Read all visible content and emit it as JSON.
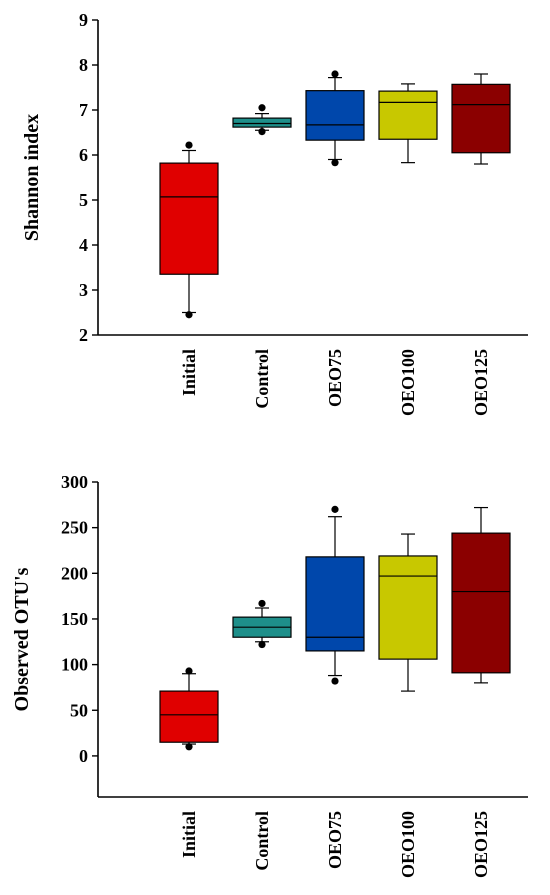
{
  "chart_data": [
    {
      "type": "boxplot",
      "ylabel": "Shannon index",
      "ylim": [
        2,
        9
      ],
      "yticks": [
        2,
        3,
        4,
        5,
        6,
        7,
        8,
        9
      ],
      "categories": [
        "Initial",
        "Control",
        "OEO75",
        "OEO100",
        "OEO125"
      ],
      "colors": [
        "#e00000",
        "#1e8f8a",
        "#0047ab",
        "#c8c800",
        "#8b0000"
      ],
      "boxes": [
        {
          "min": 2.5,
          "q1": 3.35,
          "median": 5.07,
          "q3": 5.82,
          "max": 6.1,
          "outliers": [
            2.45,
            6.22
          ]
        },
        {
          "min": 6.55,
          "q1": 6.62,
          "median": 6.7,
          "q3": 6.82,
          "max": 6.92,
          "outliers": [
            6.52,
            7.05
          ]
        },
        {
          "min": 5.9,
          "q1": 6.33,
          "median": 6.67,
          "q3": 7.43,
          "max": 7.72,
          "outliers": [
            5.83,
            7.8
          ]
        },
        {
          "min": 5.83,
          "q1": 6.35,
          "median": 7.17,
          "q3": 7.42,
          "max": 7.58,
          "outliers": []
        },
        {
          "min": 5.8,
          "q1": 6.05,
          "median": 7.12,
          "q3": 7.57,
          "max": 7.8,
          "outliers": []
        }
      ]
    },
    {
      "type": "boxplot",
      "ylabel": "Observed OTU's",
      "ylim": [
        -45,
        300
      ],
      "yticks": [
        0,
        50,
        100,
        150,
        200,
        250,
        300
      ],
      "categories": [
        "Initial",
        "Control",
        "OEO75",
        "OEO100",
        "OEO125"
      ],
      "colors": [
        "#e00000",
        "#1e8f8a",
        "#0047ab",
        "#c8c800",
        "#8b0000"
      ],
      "boxes": [
        {
          "min": 13,
          "q1": 15,
          "median": 45,
          "q3": 71,
          "max": 90,
          "outliers": [
            10,
            93
          ]
        },
        {
          "min": 125,
          "q1": 130,
          "median": 141,
          "q3": 152,
          "max": 162,
          "outliers": [
            122,
            167
          ]
        },
        {
          "min": 88,
          "q1": 115,
          "median": 130,
          "q3": 218,
          "max": 262,
          "outliers": [
            82,
            270
          ]
        },
        {
          "min": 71,
          "q1": 106,
          "median": 197,
          "q3": 219,
          "max": 243,
          "outliers": []
        },
        {
          "min": 80,
          "q1": 91,
          "median": 180,
          "q3": 244,
          "max": 272,
          "outliers": []
        }
      ]
    }
  ]
}
